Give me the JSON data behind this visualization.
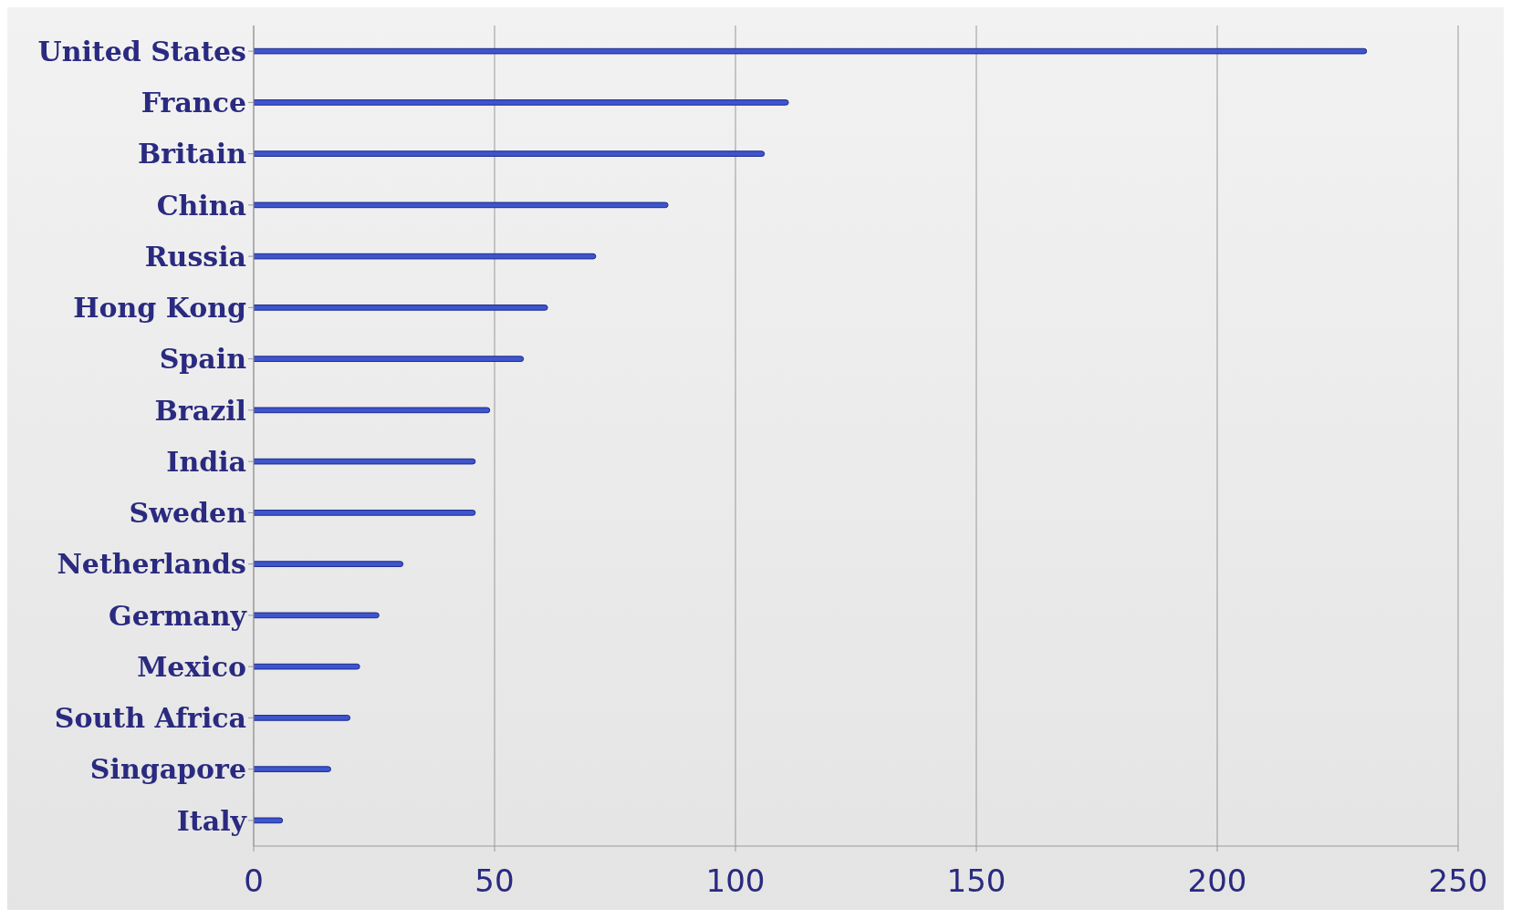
{
  "chart_data": {
    "type": "bar",
    "orientation": "horizontal",
    "categories": [
      "United States",
      "France",
      "Britain",
      "China",
      "Russia",
      "Hong Kong",
      "Spain",
      "Brazil",
      "India",
      "Sweden",
      "Netherlands",
      "Germany",
      "Mexico",
      "South Africa",
      "Singapore",
      "Italy"
    ],
    "values": [
      231,
      111,
      106,
      86,
      71,
      61,
      56,
      49,
      46,
      46,
      31,
      26,
      22,
      20,
      16,
      6
    ],
    "color": "#3f55cc",
    "xlim": [
      0,
      250
    ],
    "xticks": [
      0,
      50,
      100,
      150,
      200,
      250
    ],
    "grid": "x"
  }
}
